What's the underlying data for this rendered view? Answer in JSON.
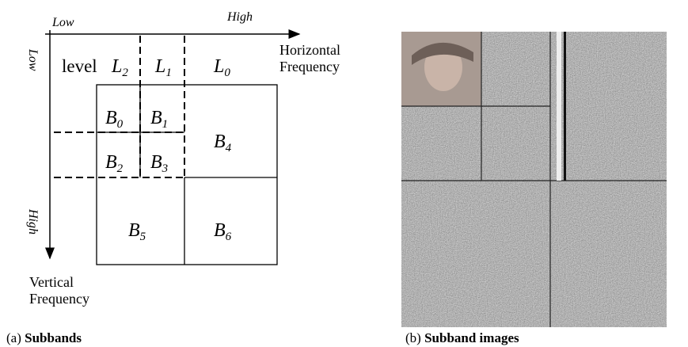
{
  "diagram": {
    "top_axis": {
      "low": "Low",
      "high": "High",
      "label": [
        "Horizontal",
        "Frequency"
      ]
    },
    "left_axis": {
      "low": "Low",
      "high": "High",
      "label": [
        "Vertical",
        "Frequency"
      ]
    },
    "level_label": "level",
    "levels": [
      {
        "letter": "L",
        "sub": "2"
      },
      {
        "letter": "L",
        "sub": "1"
      },
      {
        "letter": "L",
        "sub": "0"
      }
    ],
    "blocks": [
      {
        "letter": "B",
        "sub": "0"
      },
      {
        "letter": "B",
        "sub": "1"
      },
      {
        "letter": "B",
        "sub": "2"
      },
      {
        "letter": "B",
        "sub": "3"
      },
      {
        "letter": "B",
        "sub": "4"
      },
      {
        "letter": "B",
        "sub": "5"
      },
      {
        "letter": "B",
        "sub": "6"
      }
    ],
    "captions": [
      {
        "tag": "(a)",
        "text": "Subbands"
      },
      {
        "tag": "(b)",
        "text": "Subband images"
      }
    ]
  }
}
